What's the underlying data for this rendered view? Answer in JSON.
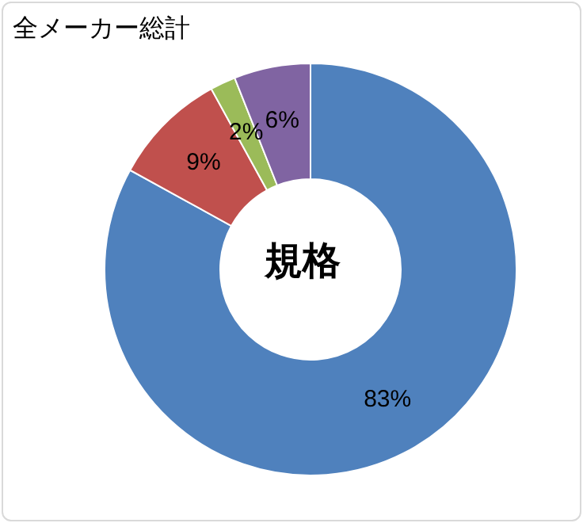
{
  "chart_data": {
    "type": "donut",
    "title": "全メーカー総計",
    "annotations": [
      "規格"
    ],
    "categories": [
      null,
      null,
      null,
      null
    ],
    "values": [
      83,
      9,
      2,
      6
    ],
    "colors": [
      "#4f81bd",
      "#c0504d",
      "#9bbb59",
      "#8064a2"
    ],
    "value_labels": [
      "83%",
      "9%",
      "2%",
      "6%"
    ]
  }
}
